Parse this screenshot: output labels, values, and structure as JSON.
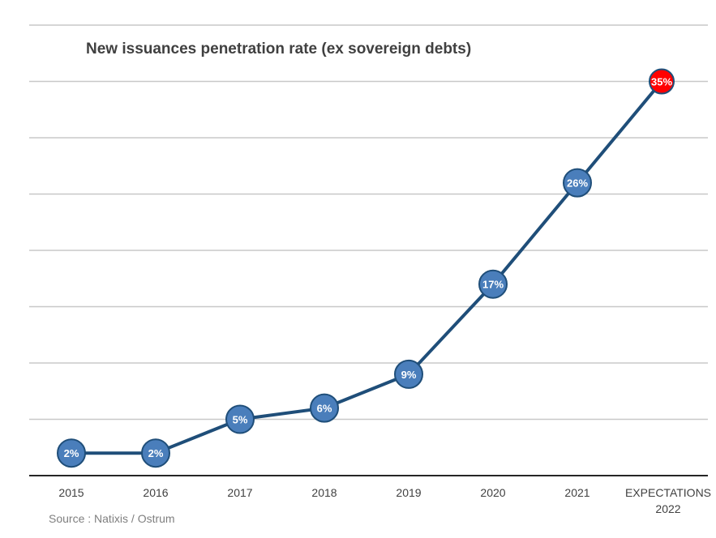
{
  "chart_data": {
    "type": "line",
    "title": "New issuances penetration rate (ex sovereign debts)",
    "categories": [
      [
        "2015"
      ],
      [
        "2016"
      ],
      [
        "2017"
      ],
      [
        "2018"
      ],
      [
        "2019"
      ],
      [
        "2020"
      ],
      [
        "2021"
      ],
      [
        "EXPECTATIONS",
        "2022"
      ]
    ],
    "series": [
      {
        "values": [
          2,
          2,
          5,
          6,
          9,
          17,
          26,
          35
        ],
        "labels": [
          "2%",
          "2%",
          "5%",
          "6%",
          "9%",
          "17%",
          "26%",
          "35%"
        ]
      }
    ],
    "ylim": [
      0,
      40
    ],
    "gridlines": true,
    "source": "Source : Natixis / Ostrum",
    "colors": {
      "line": "#1f4e79",
      "marker": "#4a7ebb",
      "marker_border": "#1f4e79",
      "highlight_marker": "#ff0000",
      "grid": "#c8c8c8",
      "axis": "#262626",
      "text": "#404040"
    }
  }
}
